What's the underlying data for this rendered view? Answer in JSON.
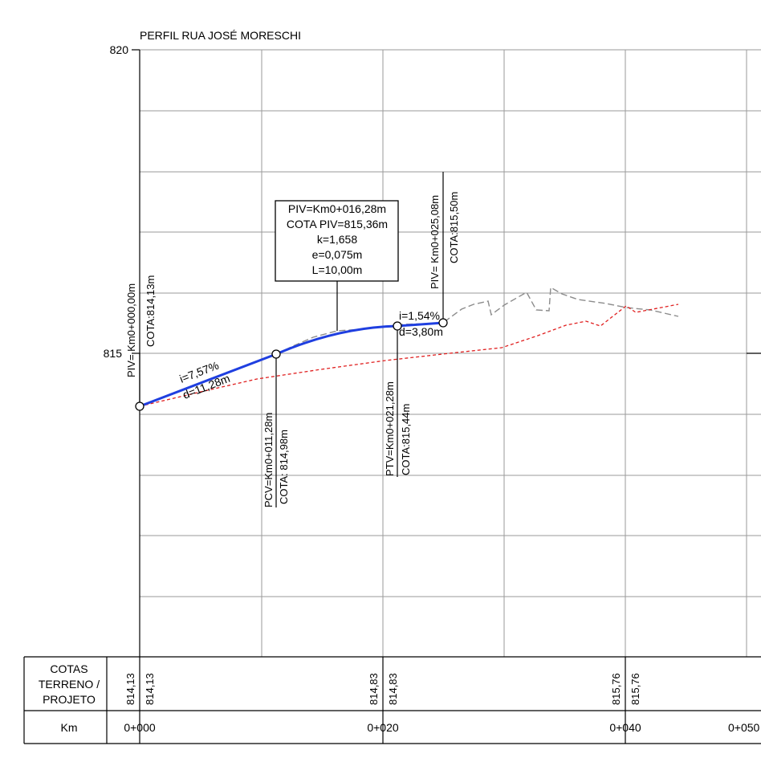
{
  "title": "PERFIL RUA JOSÉ MORESCHI",
  "y_axis": {
    "min_label": "815",
    "max_label": "820"
  },
  "box": {
    "line1": "PIV=Km0+016,28m",
    "line2": "COTA PIV=815,36m",
    "line3": "k=1,658",
    "line4": "e=0,075m",
    "line5": "L=10,00m"
  },
  "points": {
    "piv_start": {
      "label": "PIV= Km0+000,00m",
      "cota": "COTA:814,13m"
    },
    "pcv": {
      "label": "PCV=Km0+011,28m",
      "cota": "COTA: 814,98m"
    },
    "ptv": {
      "label": "PTV=Km0+021,28m",
      "cota": "COTA:815,44m"
    },
    "piv_end": {
      "label": "PIV= Km0+025,08m",
      "cota": "COTA:815,50m"
    }
  },
  "grades": {
    "g1_i": "i=7,57%",
    "g1_d": "d=11,28m",
    "g2_i": "i=1,54%",
    "g2_d": "d=3,80m"
  },
  "table": {
    "cotas_line1": "COTAS",
    "cotas_line2": "TERRENO /",
    "cotas_line3": "PROJETO",
    "km_label": "Km",
    "values": [
      {
        "terreno": "814,13",
        "projeto": "814,13"
      },
      {
        "terreno": "814,83",
        "projeto": "814,83"
      },
      {
        "terreno": "815,76",
        "projeto": "815,76"
      }
    ],
    "km_ticks": [
      "0+000",
      "0+020",
      "0+040",
      "0+050"
    ]
  },
  "colors": {
    "grid": "#9a9a9a",
    "project": "#1f3fe0",
    "terrain": "#e02020",
    "existing": "#8c8c8c"
  }
}
